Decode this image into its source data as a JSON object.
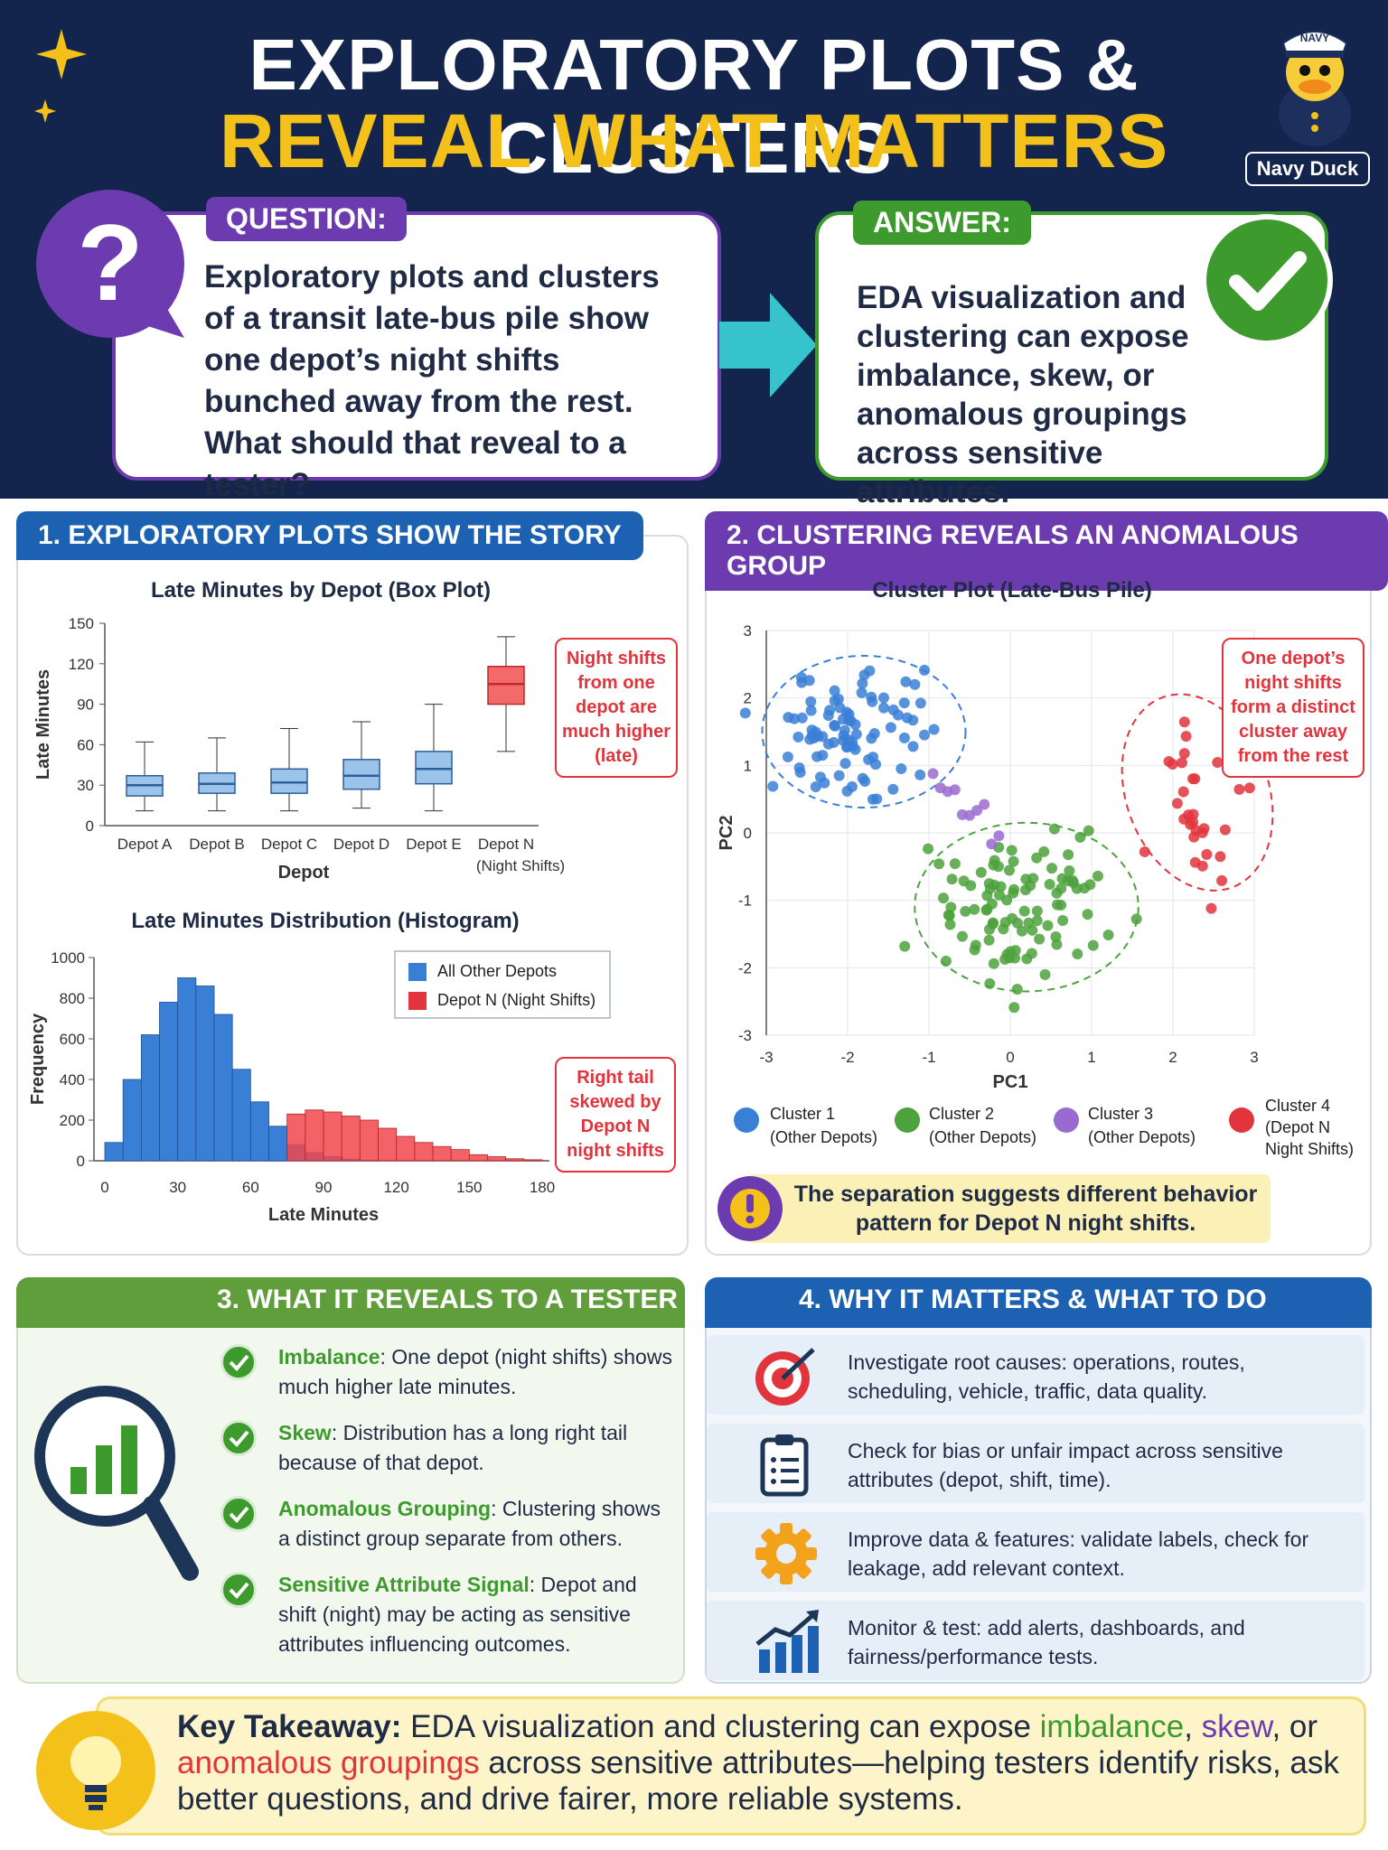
{
  "header": {
    "title_line1": "EXPLORATORY PLOTS & CLUSTERS",
    "title_line2": "REVEAL WHAT MATTERS",
    "mascot_label": "Navy Duck",
    "mascot_cap": "NAVY"
  },
  "question": {
    "tag": "QUESTION:",
    "text": "Exploratory plots and clusters of a transit late-bus pile show one depot’s night shifts bunched away from the rest. What should that reveal to a tester?"
  },
  "answer": {
    "tag": "ANSWER:",
    "text": "EDA visualization and clustering can expose imbalance, skew, or anomalous groupings across sensitive attributes."
  },
  "section1": {
    "title": "1. EXPLORATORY PLOTS SHOW THE STORY"
  },
  "section2": {
    "title": "2. CLUSTERING REVEALS AN ANOMALOUS GROUP",
    "note": "The separation suggests different behavior pattern for Depot N night shifts."
  },
  "section3": {
    "title": "3. WHAT IT REVEALS TO A TESTER",
    "items": [
      {
        "term": "Imbalance",
        "text": ": One depot (night shifts) shows much higher late minutes."
      },
      {
        "term": "Skew",
        "text": ": Distribution has a long right tail because of that depot."
      },
      {
        "term": "Anomalous Grouping",
        "text": ": Clustering shows a distinct group separate from others."
      },
      {
        "term": "Sensitive Attribute Signal",
        "text": ": Depot and shift (night) may be acting as sensitive attributes influencing outcomes."
      }
    ]
  },
  "section4": {
    "title": "4. WHY IT MATTERS & WHAT TO DO",
    "items": [
      {
        "icon": "target-icon",
        "text": "Investigate root causes: operations, routes, scheduling, vehicle, traffic, data quality."
      },
      {
        "icon": "clipboard-icon",
        "text": "Check for bias or unfair impact across sensitive attributes (depot, shift, time)."
      },
      {
        "icon": "gear-icon",
        "text": "Improve data & features: validate labels, check for leakage, add relevant context."
      },
      {
        "icon": "rising-chart-icon",
        "text": "Monitor & test: add alerts, dashboards, and fairness/performance tests."
      }
    ]
  },
  "takeaway": {
    "label": "Key Takeaway:",
    "p1": " EDA visualization and clustering can expose ",
    "imbalance": "imbalance",
    "p2": ",",
    "skew": "skew",
    "p3": ", or ",
    "anomalous": "anomalous groupings",
    "p4": " across sensitive attributes—helping testers identify risks, ask better questions, and drive fairer, more reliable systems."
  },
  "colors": {
    "navy": "#13244d",
    "yellow": "#f4c11b",
    "purple": "#6c3bb0",
    "green": "#3d9a2d",
    "blue": "#1d61b3",
    "red": "#e2343c"
  },
  "chart_data": [
    {
      "type": "box",
      "title": "Late Minutes by Depot (Box Plot)",
      "xlabel": "Depot",
      "ylabel": "Late Minutes",
      "ylim": [
        0,
        150
      ],
      "yticks": [
        0,
        30,
        60,
        90,
        120,
        150
      ],
      "categories": [
        "Depot A",
        "Depot B",
        "Depot C",
        "Depot D",
        "Depot E",
        "Depot N (Night Shifts)"
      ],
      "boxes": [
        {
          "name": "Depot A",
          "min": 11,
          "q1": 22,
          "median": 30,
          "q3": 37,
          "max": 62
        },
        {
          "name": "Depot B",
          "min": 11,
          "q1": 24,
          "median": 31,
          "q3": 39,
          "max": 65
        },
        {
          "name": "Depot C",
          "min": 11,
          "q1": 24,
          "median": 32,
          "q3": 42,
          "max": 72
        },
        {
          "name": "Depot D",
          "min": 13,
          "q1": 27,
          "median": 37,
          "q3": 49,
          "max": 77
        },
        {
          "name": "Depot E",
          "min": 11,
          "q1": 31,
          "median": 42,
          "q3": 55,
          "max": 90
        },
        {
          "name": "Depot N (Night Shifts)",
          "min": 55,
          "q1": 90,
          "median": 105,
          "q3": 118,
          "max": 140
        }
      ],
      "annotation": "Night shifts from one depot are much higher (late)"
    },
    {
      "type": "histogram",
      "title": "Late Minutes Distribution (Histogram)",
      "xlabel": "Late Minutes",
      "ylabel": "Frequency",
      "xlim": [
        0,
        180
      ],
      "ylim": [
        0,
        1000
      ],
      "xticks": [
        0,
        30,
        60,
        90,
        120,
        150,
        180
      ],
      "yticks": [
        0,
        200,
        400,
        600,
        800,
        1000
      ],
      "bin_width": 7.5,
      "series": [
        {
          "name": "All Other Depots",
          "values": [
            90,
            400,
            620,
            780,
            900,
            860,
            720,
            450,
            290,
            170,
            80,
            40,
            20,
            8,
            3,
            0,
            0,
            0,
            0,
            0,
            0,
            0,
            0,
            0
          ]
        },
        {
          "name": "Depot N (Night Shifts)",
          "values": [
            0,
            0,
            0,
            0,
            0,
            0,
            0,
            0,
            0,
            0,
            230,
            250,
            240,
            220,
            200,
            160,
            120,
            90,
            70,
            55,
            30,
            20,
            10,
            5
          ]
        }
      ],
      "annotation": "Right tail skewed by Depot N night shifts"
    },
    {
      "type": "scatter",
      "title": "Cluster Plot (Late-Bus Pile)",
      "xlabel": "PC1",
      "ylabel": "PC2",
      "xlim": [
        -3,
        3
      ],
      "ylim": [
        -3,
        3
      ],
      "xticks": [
        -3,
        -2,
        -1,
        0,
        1,
        2,
        3
      ],
      "yticks": [
        -3,
        -2,
        -1,
        0,
        1,
        2,
        3
      ],
      "series": [
        {
          "name": "Cluster 1 (Other Depots)",
          "color": "#3a7fd6",
          "center": [
            -1.8,
            1.5
          ],
          "spread": [
            0.5,
            0.45
          ],
          "count": 90
        },
        {
          "name": "Cluster 2 (Other Depots)",
          "color": "#4ca23c",
          "center": [
            0.2,
            -1.1
          ],
          "spread": [
            0.55,
            0.5
          ],
          "count": 100
        },
        {
          "name": "Cluster 3 (Other Depots)",
          "color": "#9b6ad0",
          "center": [
            -0.5,
            0.3
          ],
          "spread": [
            0.2,
            0.15
          ],
          "count": 10
        },
        {
          "name": "Cluster 4 (Depot N Night Shifts)",
          "color": "#e2343c",
          "center": [
            2.3,
            0.6
          ],
          "spread": [
            0.35,
            0.6
          ],
          "count": 32
        }
      ],
      "annotation": "One depot’s night shifts form a distinct cluster away from the rest"
    }
  ]
}
